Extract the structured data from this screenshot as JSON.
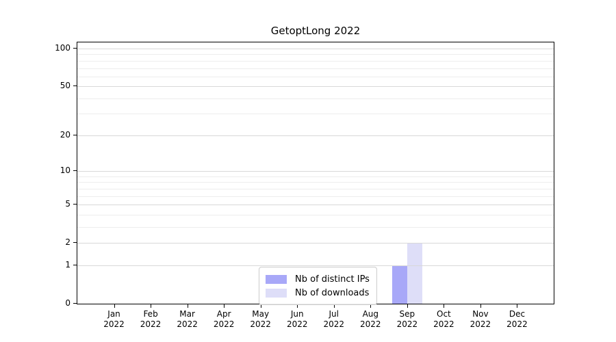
{
  "chart_data": {
    "type": "bar",
    "title": "GetoptLong 2022",
    "categories": [
      "Jan",
      "Feb",
      "Mar",
      "Apr",
      "May",
      "Jun",
      "Jul",
      "Aug",
      "Sep",
      "Oct",
      "Nov",
      "Dec"
    ],
    "x_year": "2022",
    "series": [
      {
        "name": "Nb of distinct IPs",
        "color": "#a8a8f8",
        "values": [
          0,
          0,
          0,
          0,
          0,
          0,
          0,
          0,
          1,
          0,
          0,
          0
        ]
      },
      {
        "name": "Nb of downloads",
        "color": "#dedef8",
        "values": [
          0,
          0,
          0,
          0,
          0,
          0,
          0,
          0,
          2,
          0,
          0,
          0
        ]
      }
    ],
    "y_ticks": [
      0,
      1,
      2,
      5,
      10,
      20,
      50,
      100
    ],
    "y_tick_labels": [
      "0",
      "1",
      "2",
      "5",
      "10",
      "20",
      "50",
      "100"
    ],
    "y_minor_ticks": [
      3,
      4,
      6,
      7,
      8,
      9,
      30,
      40,
      60,
      70,
      80,
      90
    ],
    "scale": "log1p",
    "ylim": [
      0,
      110
    ],
    "xlabel": "",
    "ylabel": "",
    "grid": "horizontal",
    "legend_position": "bottom-center",
    "colors": {
      "axis": "#000000",
      "grid_major": "#d8d8d8",
      "grid_minor": "#ededed",
      "background": "#ffffff"
    }
  }
}
